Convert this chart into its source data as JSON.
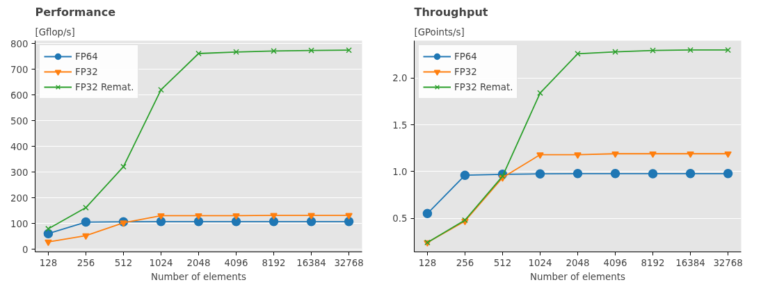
{
  "chart_data": [
    {
      "type": "line",
      "title": "Performance",
      "ylabel": "[Gflop/s]",
      "xlabel": "Number of elements",
      "categories": [
        "128",
        "256",
        "512",
        "1024",
        "2048",
        "4096",
        "8192",
        "16384",
        "32768"
      ],
      "ylim": [
        -10,
        811
      ],
      "yticks": [
        0,
        100,
        200,
        300,
        400,
        500,
        600,
        700,
        800
      ],
      "grid": "y",
      "legend": "top left",
      "series": [
        {
          "name": "FP64",
          "color": "#1f77b4",
          "marker": "circle",
          "values": [
            61,
            106,
            107,
            108,
            108,
            108,
            108,
            108,
            108
          ]
        },
        {
          "name": "FP32",
          "color": "#ff7f0e",
          "marker": "triangle",
          "values": [
            29,
            53,
            103,
            131,
            131,
            131,
            132,
            132,
            132
          ]
        },
        {
          "name": "FP32 Remat.",
          "color": "#2ca02c",
          "marker": "cross",
          "values": [
            80,
            162,
            321,
            620,
            761,
            767,
            771,
            773,
            774
          ]
        }
      ]
    },
    {
      "type": "line",
      "title": "Throughput",
      "ylabel": "[GPoints/s]",
      "xlabel": "Number of elements",
      "categories": [
        "128",
        "256",
        "512",
        "1024",
        "2048",
        "4096",
        "8192",
        "16384",
        "32768"
      ],
      "ylim": [
        0.14,
        2.4
      ],
      "yticks": [
        {
          "value": 0.5,
          "label": "0.5"
        },
        {
          "value": 1.0,
          "label": "1.0"
        },
        {
          "value": 1.5,
          "label": "1.5"
        },
        {
          "value": 2.0,
          "label": "2.0"
        }
      ],
      "grid": "y",
      "legend": "top left",
      "series": [
        {
          "name": "FP64",
          "color": "#1f77b4",
          "marker": "circle",
          "values": [
            0.55,
            0.96,
            0.97,
            0.975,
            0.978,
            0.978,
            0.977,
            0.978,
            0.978
          ]
        },
        {
          "name": "FP32",
          "color": "#ff7f0e",
          "marker": "triangle",
          "values": [
            0.24,
            0.47,
            0.935,
            1.18,
            1.18,
            1.19,
            1.19,
            1.19,
            1.19
          ]
        },
        {
          "name": "FP32 Remat.",
          "color": "#2ca02c",
          "marker": "cross",
          "values": [
            0.24,
            0.48,
            0.95,
            1.84,
            2.26,
            2.28,
            2.295,
            2.3,
            2.3
          ]
        }
      ]
    }
  ]
}
